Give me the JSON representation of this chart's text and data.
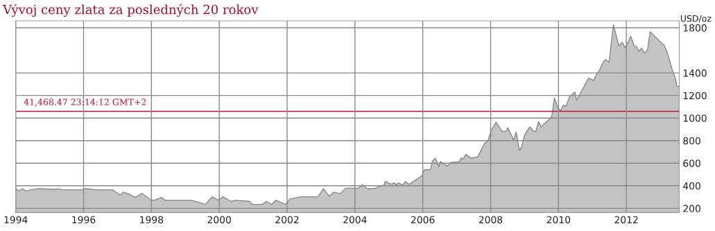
{
  "chart_data": {
    "type": "area",
    "title": "Vývoj ceny zlata za posledných 20 rokov",
    "ylabel": "USD/oz",
    "x": [
      1994.0,
      1994.09,
      1994.19,
      1994.32,
      1994.42,
      1994.69,
      1995.15,
      1995.28,
      1995.38,
      1995.94,
      1996.07,
      1996.44,
      1996.85,
      1997.08,
      1997.17,
      1997.39,
      1997.52,
      1997.72,
      1997.97,
      1998.09,
      1998.29,
      1998.4,
      1999.18,
      1999.59,
      1999.79,
      1999.97,
      2000.11,
      2000.35,
      2000.48,
      2000.89,
      2000.97,
      2001.27,
      2001.39,
      2001.54,
      2001.67,
      2001.95,
      2002.08,
      2002.41,
      2002.91,
      2003.07,
      2003.24,
      2003.37,
      2003.57,
      2003.72,
      2004.1,
      2004.22,
      2004.36,
      2004.55,
      2004.87,
      2004.89,
      2005.05,
      2005.17,
      2005.21,
      2005.28,
      2005.41,
      2005.48,
      2005.6,
      2005.97,
      2006.05,
      2006.22,
      2006.29,
      2006.37,
      2006.47,
      2006.52,
      2006.72,
      2006.86,
      2007.06,
      2007.13,
      2007.19,
      2007.27,
      2007.43,
      2007.62,
      2007.82,
      2007.92,
      2008.01,
      2008.16,
      2008.34,
      2008.44,
      2008.51,
      2008.68,
      2008.75,
      2008.85,
      2008.91,
      2009.01,
      2009.16,
      2009.27,
      2009.33,
      2009.41,
      2009.49,
      2009.8,
      2009.88,
      2009.98,
      2010.06,
      2010.14,
      2010.23,
      2010.32,
      2010.48,
      2010.54,
      2010.89,
      2011.04,
      2011.12,
      2011.22,
      2011.32,
      2011.39,
      2011.49,
      2011.62,
      2011.78,
      2011.88,
      2011.97,
      2012.13,
      2012.23,
      2012.31,
      2012.37,
      2012.45,
      2012.55,
      2012.63,
      2012.7,
      2013.12,
      2013.22,
      2013.35,
      2013.45,
      2013.49,
      2013.56
    ],
    "series": [
      {
        "color": "#c3c3c3",
        "values": [
          378,
          354,
          374,
          354,
          364,
          374,
          368,
          374,
          364,
          364,
          374,
          364,
          364,
          319,
          344,
          319,
          297,
          334,
          276,
          272,
          297,
          272,
          272,
          235,
          303,
          272,
          303,
          262,
          272,
          262,
          235,
          235,
          262,
          235,
          272,
          235,
          283,
          303,
          303,
          374,
          307,
          344,
          330,
          378,
          378,
          409,
          374,
          374,
          409,
          440,
          415,
          425,
          409,
          425,
          405,
          436,
          413,
          487,
          542,
          542,
          620,
          645,
          569,
          614,
          575,
          610,
          610,
          645,
          637,
          678,
          645,
          656,
          775,
          799,
          887,
          963,
          881,
          881,
          914,
          805,
          877,
          713,
          744,
          857,
          922,
          881,
          881,
          969,
          922,
          1010,
          1180,
          1092,
          1066,
          1113,
          1107,
          1185,
          1230,
          1160,
          1355,
          1334,
          1386,
          1431,
          1497,
          1519,
          1492,
          1826,
          1640,
          1671,
          1622,
          1724,
          1640,
          1630,
          1591,
          1620,
          1574,
          1611,
          1765,
          1642,
          1570,
          1431,
          1349,
          1287,
          1277
        ]
      }
    ],
    "xlim": [
      1994,
      2013.56
    ],
    "xticks": [
      1994,
      1996,
      1998,
      2000,
      2002,
      2004,
      2006,
      2008,
      2010,
      2012
    ],
    "ylim": [
      163,
      1862
    ],
    "yticks": [
      200,
      400,
      600,
      800,
      1000,
      1200,
      1400,
      1800
    ],
    "ref_lines": [
      {
        "axis": "y",
        "value": 1060,
        "color": "#c0102a"
      }
    ],
    "annotations": [
      "41,468.47 23:14:12 GMT+2"
    ],
    "grid": true
  }
}
